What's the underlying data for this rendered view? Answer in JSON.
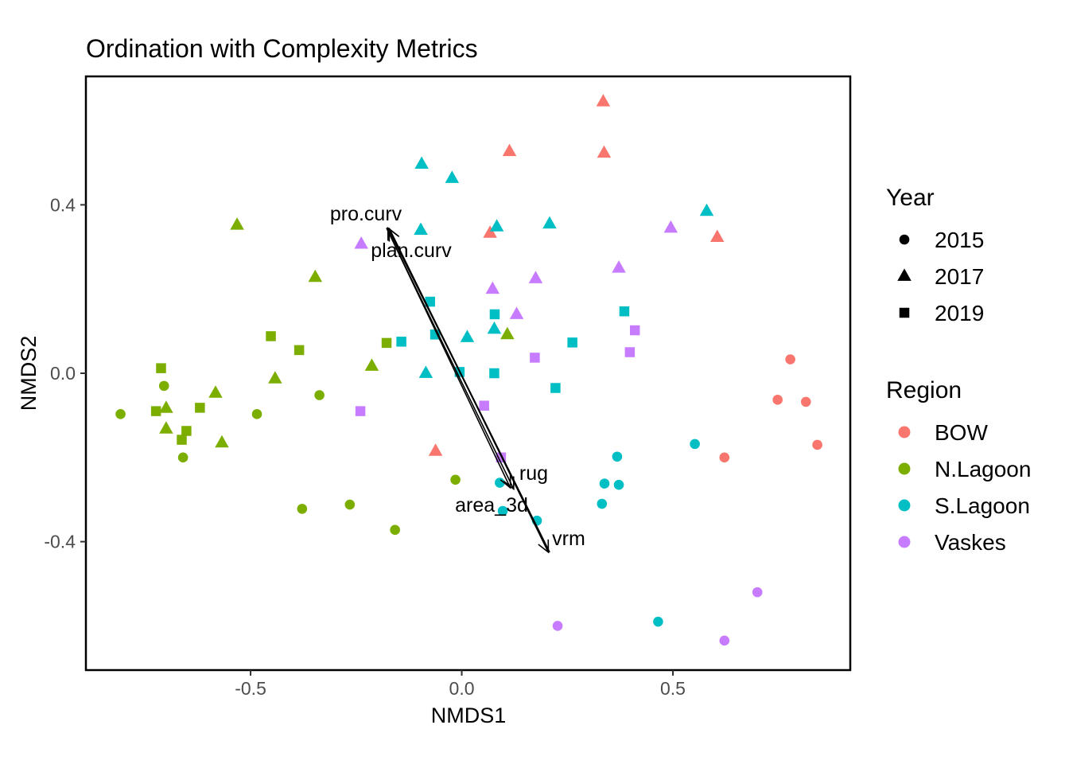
{
  "chart_data": {
    "type": "scatter",
    "title": "Ordination with Complexity Metrics",
    "xlabel": "NMDS1",
    "ylabel": "NMDS2",
    "xlim": [
      -0.89,
      0.92
    ],
    "ylim": [
      -0.705,
      0.705
    ],
    "xticks": [
      -0.5,
      0.0,
      0.5
    ],
    "xtick_labels": [
      "-0.5",
      "0.0",
      "0.5"
    ],
    "yticks": [
      -0.4,
      0.0,
      0.4
    ],
    "ytick_labels": [
      "-0.4",
      "0.0",
      "0.4"
    ],
    "grid": false,
    "legend_position": "right",
    "legend": {
      "shape_title": "Year",
      "shape_entries": [
        {
          "label": "2015",
          "shape": "circle"
        },
        {
          "label": "2017",
          "shape": "triangle"
        },
        {
          "label": "2019",
          "shape": "square"
        }
      ],
      "color_title": "Region",
      "color_entries": [
        {
          "label": "BOW",
          "color": "#F8766D"
        },
        {
          "label": "N.Lagoon",
          "color": "#7CAE00"
        },
        {
          "label": "S.Lagoon",
          "color": "#00BFC4"
        },
        {
          "label": "Vaskes",
          "color": "#C77CFF"
        }
      ]
    },
    "colors": {
      "BOW": "#F8766D",
      "N.Lagoon": "#7CAE00",
      "S.Lagoon": "#00BFC4",
      "Vaskes": "#C77CFF"
    },
    "points": [
      {
        "x": 0.335,
        "y": 0.645,
        "region": "BOW",
        "year": "2017"
      },
      {
        "x": 0.113,
        "y": 0.527,
        "region": "BOW",
        "year": "2017"
      },
      {
        "x": 0.337,
        "y": 0.523,
        "region": "BOW",
        "year": "2017"
      },
      {
        "x": 0.067,
        "y": 0.333,
        "region": "BOW",
        "year": "2017"
      },
      {
        "x": 0.605,
        "y": 0.323,
        "region": "BOW",
        "year": "2017"
      },
      {
        "x": -0.062,
        "y": -0.185,
        "region": "BOW",
        "year": "2017"
      },
      {
        "x": 0.778,
        "y": 0.033,
        "region": "BOW",
        "year": "2015"
      },
      {
        "x": 0.748,
        "y": -0.063,
        "region": "BOW",
        "year": "2015"
      },
      {
        "x": 0.815,
        "y": -0.068,
        "region": "BOW",
        "year": "2015"
      },
      {
        "x": 0.842,
        "y": -0.17,
        "region": "BOW",
        "year": "2015"
      },
      {
        "x": 0.622,
        "y": -0.2,
        "region": "BOW",
        "year": "2015"
      },
      {
        "x": -0.532,
        "y": 0.352,
        "region": "N.Lagoon",
        "year": "2017"
      },
      {
        "x": -0.347,
        "y": 0.228,
        "region": "N.Lagoon",
        "year": "2017"
      },
      {
        "x": 0.108,
        "y": 0.092,
        "region": "N.Lagoon",
        "year": "2017"
      },
      {
        "x": -0.213,
        "y": 0.017,
        "region": "N.Lagoon",
        "year": "2017"
      },
      {
        "x": -0.442,
        "y": -0.013,
        "region": "N.Lagoon",
        "year": "2017"
      },
      {
        "x": -0.583,
        "y": -0.047,
        "region": "N.Lagoon",
        "year": "2017"
      },
      {
        "x": -0.7,
        "y": -0.083,
        "region": "N.Lagoon",
        "year": "2017"
      },
      {
        "x": -0.7,
        "y": -0.132,
        "region": "N.Lagoon",
        "year": "2017"
      },
      {
        "x": -0.568,
        "y": -0.165,
        "region": "N.Lagoon",
        "year": "2017"
      },
      {
        "x": -0.452,
        "y": 0.088,
        "region": "N.Lagoon",
        "year": "2019"
      },
      {
        "x": -0.385,
        "y": 0.055,
        "region": "N.Lagoon",
        "year": "2019"
      },
      {
        "x": -0.178,
        "y": 0.072,
        "region": "N.Lagoon",
        "year": "2019"
      },
      {
        "x": -0.712,
        "y": 0.012,
        "region": "N.Lagoon",
        "year": "2019"
      },
      {
        "x": -0.724,
        "y": -0.09,
        "region": "N.Lagoon",
        "year": "2019"
      },
      {
        "x": -0.62,
        "y": -0.082,
        "region": "N.Lagoon",
        "year": "2019"
      },
      {
        "x": -0.652,
        "y": -0.137,
        "region": "N.Lagoon",
        "year": "2019"
      },
      {
        "x": -0.663,
        "y": -0.158,
        "region": "N.Lagoon",
        "year": "2019"
      },
      {
        "x": -0.705,
        "y": -0.03,
        "region": "N.Lagoon",
        "year": "2015"
      },
      {
        "x": -0.808,
        "y": -0.097,
        "region": "N.Lagoon",
        "year": "2015"
      },
      {
        "x": -0.485,
        "y": -0.097,
        "region": "N.Lagoon",
        "year": "2015"
      },
      {
        "x": -0.337,
        "y": -0.052,
        "region": "N.Lagoon",
        "year": "2015"
      },
      {
        "x": -0.66,
        "y": -0.2,
        "region": "N.Lagoon",
        "year": "2015"
      },
      {
        "x": -0.015,
        "y": -0.253,
        "region": "N.Lagoon",
        "year": "2015"
      },
      {
        "x": -0.265,
        "y": -0.312,
        "region": "N.Lagoon",
        "year": "2015"
      },
      {
        "x": -0.378,
        "y": -0.322,
        "region": "N.Lagoon",
        "year": "2015"
      },
      {
        "x": -0.158,
        "y": -0.372,
        "region": "N.Lagoon",
        "year": "2015"
      },
      {
        "x": -0.095,
        "y": 0.497,
        "region": "S.Lagoon",
        "year": "2017"
      },
      {
        "x": -0.023,
        "y": 0.463,
        "region": "S.Lagoon",
        "year": "2017"
      },
      {
        "x": 0.58,
        "y": 0.385,
        "region": "S.Lagoon",
        "year": "2017"
      },
      {
        "x": -0.097,
        "y": 0.34,
        "region": "S.Lagoon",
        "year": "2017"
      },
      {
        "x": 0.083,
        "y": 0.348,
        "region": "S.Lagoon",
        "year": "2017"
      },
      {
        "x": 0.208,
        "y": 0.355,
        "region": "S.Lagoon",
        "year": "2017"
      },
      {
        "x": 0.077,
        "y": 0.105,
        "region": "S.Lagoon",
        "year": "2017"
      },
      {
        "x": 0.013,
        "y": 0.085,
        "region": "S.Lagoon",
        "year": "2017"
      },
      {
        "x": -0.085,
        "y": 0.0,
        "region": "S.Lagoon",
        "year": "2017"
      },
      {
        "x": -0.075,
        "y": 0.17,
        "region": "S.Lagoon",
        "year": "2019"
      },
      {
        "x": 0.078,
        "y": 0.14,
        "region": "S.Lagoon",
        "year": "2019"
      },
      {
        "x": 0.385,
        "y": 0.147,
        "region": "S.Lagoon",
        "year": "2019"
      },
      {
        "x": -0.063,
        "y": 0.092,
        "region": "S.Lagoon",
        "year": "2019"
      },
      {
        "x": -0.143,
        "y": 0.075,
        "region": "S.Lagoon",
        "year": "2019"
      },
      {
        "x": 0.262,
        "y": 0.073,
        "region": "S.Lagoon",
        "year": "2019"
      },
      {
        "x": -0.005,
        "y": 0.003,
        "region": "S.Lagoon",
        "year": "2019"
      },
      {
        "x": 0.077,
        "y": 0.0,
        "region": "S.Lagoon",
        "year": "2019"
      },
      {
        "x": 0.222,
        "y": -0.035,
        "region": "S.Lagoon",
        "year": "2019"
      },
      {
        "x": 0.552,
        "y": -0.168,
        "region": "S.Lagoon",
        "year": "2015"
      },
      {
        "x": 0.368,
        "y": -0.198,
        "region": "S.Lagoon",
        "year": "2015"
      },
      {
        "x": 0.338,
        "y": -0.262,
        "region": "S.Lagoon",
        "year": "2015"
      },
      {
        "x": 0.372,
        "y": -0.265,
        "region": "S.Lagoon",
        "year": "2015"
      },
      {
        "x": 0.09,
        "y": -0.26,
        "region": "S.Lagoon",
        "year": "2015"
      },
      {
        "x": 0.332,
        "y": -0.31,
        "region": "S.Lagoon",
        "year": "2015"
      },
      {
        "x": 0.097,
        "y": -0.327,
        "region": "S.Lagoon",
        "year": "2015"
      },
      {
        "x": 0.178,
        "y": -0.35,
        "region": "S.Lagoon",
        "year": "2015"
      },
      {
        "x": 0.465,
        "y": -0.59,
        "region": "S.Lagoon",
        "year": "2015"
      },
      {
        "x": -0.238,
        "y": 0.307,
        "region": "Vaskes",
        "year": "2017"
      },
      {
        "x": 0.495,
        "y": 0.345,
        "region": "Vaskes",
        "year": "2017"
      },
      {
        "x": 0.372,
        "y": 0.25,
        "region": "Vaskes",
        "year": "2017"
      },
      {
        "x": 0.175,
        "y": 0.225,
        "region": "Vaskes",
        "year": "2017"
      },
      {
        "x": 0.073,
        "y": 0.2,
        "region": "Vaskes",
        "year": "2017"
      },
      {
        "x": 0.13,
        "y": 0.14,
        "region": "Vaskes",
        "year": "2017"
      },
      {
        "x": 0.41,
        "y": 0.102,
        "region": "Vaskes",
        "year": "2019"
      },
      {
        "x": 0.398,
        "y": 0.05,
        "region": "Vaskes",
        "year": "2019"
      },
      {
        "x": 0.173,
        "y": 0.037,
        "region": "Vaskes",
        "year": "2019"
      },
      {
        "x": -0.24,
        "y": -0.09,
        "region": "Vaskes",
        "year": "2019"
      },
      {
        "x": 0.053,
        "y": -0.077,
        "region": "Vaskes",
        "year": "2019"
      },
      {
        "x": 0.093,
        "y": -0.2,
        "region": "Vaskes",
        "year": "2019"
      },
      {
        "x": 0.7,
        "y": -0.52,
        "region": "Vaskes",
        "year": "2015"
      },
      {
        "x": 0.227,
        "y": -0.6,
        "region": "Vaskes",
        "year": "2015"
      },
      {
        "x": 0.622,
        "y": -0.635,
        "region": "Vaskes",
        "year": "2015"
      }
    ],
    "vectors": [
      {
        "label": "pro.curv",
        "x1": 0.208,
        "y1": -0.425,
        "x2": -0.175,
        "y2": 0.345
      },
      {
        "label": "plan.curv",
        "x1": 0.208,
        "y1": -0.425,
        "x2": -0.172,
        "y2": 0.343
      },
      {
        "label": "rug",
        "x1": -0.178,
        "y1": 0.345,
        "x2": 0.123,
        "y2": -0.275
      },
      {
        "label": "area_3d",
        "x1": -0.178,
        "y1": 0.345,
        "x2": 0.115,
        "y2": -0.272
      },
      {
        "label": "vrm",
        "x1": -0.172,
        "y1": 0.345,
        "x2": 0.205,
        "y2": -0.425
      }
    ]
  }
}
